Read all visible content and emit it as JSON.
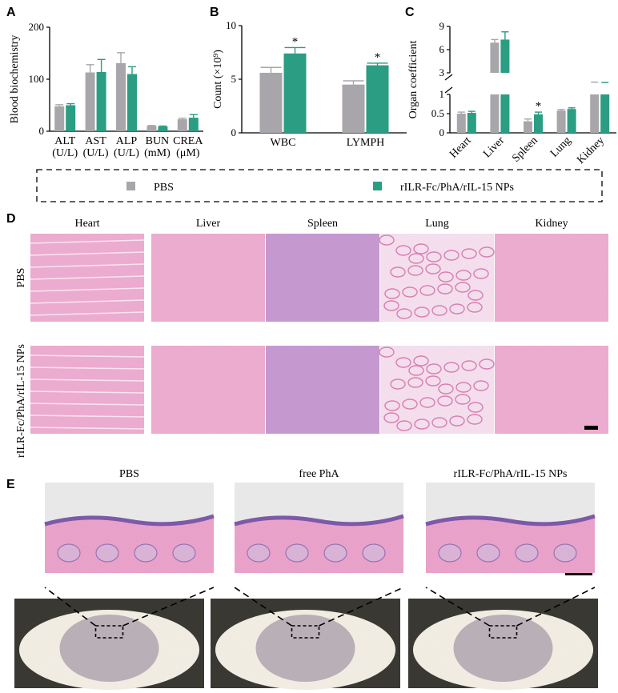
{
  "colors": {
    "pbs": "#a8a6aa",
    "nps": "#2a9d82",
    "axis": "#000000",
    "he_pink": "#e6a6c8",
    "he_purple": "#8a6fb6",
    "skin_bg": "#e8e8e8",
    "fur": "#f2ede3",
    "photo_bg": "#3a3833"
  },
  "legend": {
    "pbs_label": "PBS",
    "nps_label": "rILR-Fc/PhA/rIL-15 NPs"
  },
  "panelA": {
    "letter": "A",
    "ylabel": "Blood biochemistry"
  },
  "panelB": {
    "letter": "B",
    "ylabel": "Count (×10⁹)"
  },
  "panelC": {
    "letter": "C",
    "ylabel": "Organ coefficient"
  },
  "panelD": {
    "letter": "D",
    "columns": [
      "Heart",
      "Liver",
      "Spleen",
      "Lung",
      "Kidney"
    ],
    "rows": [
      "PBS",
      "rILR-Fc/PhA/rIL-15 NPs"
    ]
  },
  "panelE": {
    "letter": "E",
    "columns": [
      "PBS",
      "free PhA",
      "rILR-Fc/PhA/rIL-15 NPs"
    ]
  },
  "chart_data": [
    {
      "panel": "A",
      "type": "bar",
      "ylabel": "Blood biochemistry",
      "ylim": [
        0,
        200
      ],
      "yticks": [
        0,
        100,
        200
      ],
      "categories": [
        "ALT\n(U/L)",
        "AST\n(U/L)",
        "ALP\n(U/L)",
        "BUN\n(mM)",
        "CREA\n(μM)"
      ],
      "series": [
        {
          "name": "PBS",
          "values": [
            48,
            113,
            131,
            10,
            23
          ],
          "errors": [
            3,
            15,
            20,
            1,
            2
          ]
        },
        {
          "name": "rILR-Fc/PhA/rIL-15 NPs",
          "values": [
            50,
            114,
            110,
            9,
            26
          ],
          "errors": [
            3,
            24,
            14,
            1,
            6
          ]
        }
      ],
      "annotations": []
    },
    {
      "panel": "B",
      "type": "bar",
      "ylabel": "Count (×10⁹)",
      "ylim": [
        0,
        10
      ],
      "yticks": [
        0,
        5,
        10
      ],
      "categories": [
        "WBC",
        "LYMPH"
      ],
      "series": [
        {
          "name": "PBS",
          "values": [
            5.6,
            4.5
          ],
          "errors": [
            0.5,
            0.35
          ]
        },
        {
          "name": "rILR-Fc/PhA/rIL-15 NPs",
          "values": [
            7.4,
            6.3
          ],
          "errors": [
            0.55,
            0.2
          ]
        }
      ],
      "annotations": [
        {
          "category": "WBC",
          "series": 1,
          "text": "*"
        },
        {
          "category": "LYMPH",
          "series": 1,
          "text": "*"
        }
      ]
    },
    {
      "panel": "C",
      "type": "bar",
      "ylabel": "Organ coefficient",
      "broken_axis": true,
      "ylim_lower": [
        0,
        1
      ],
      "ylim_upper": [
        3,
        9
      ],
      "yticks_lower": [
        0,
        0.5,
        1
      ],
      "yticks_upper": [
        3,
        6,
        9
      ],
      "categories": [
        "Heart",
        "Liver",
        "Spleen",
        "Lung",
        "Kidney"
      ],
      "series": [
        {
          "name": "PBS",
          "values": [
            0.5,
            6.9,
            0.3,
            0.58,
            1.7
          ],
          "errors": [
            0.04,
            0.4,
            0.06,
            0.03,
            0.1
          ]
        },
        {
          "name": "rILR-Fc/PhA/rIL-15 NPs",
          "values": [
            0.52,
            7.3,
            0.48,
            0.62,
            1.65
          ],
          "errors": [
            0.04,
            1.0,
            0.06,
            0.03,
            0.1
          ]
        }
      ],
      "annotations": [
        {
          "category": "Spleen",
          "series": 1,
          "text": "*"
        }
      ]
    }
  ]
}
